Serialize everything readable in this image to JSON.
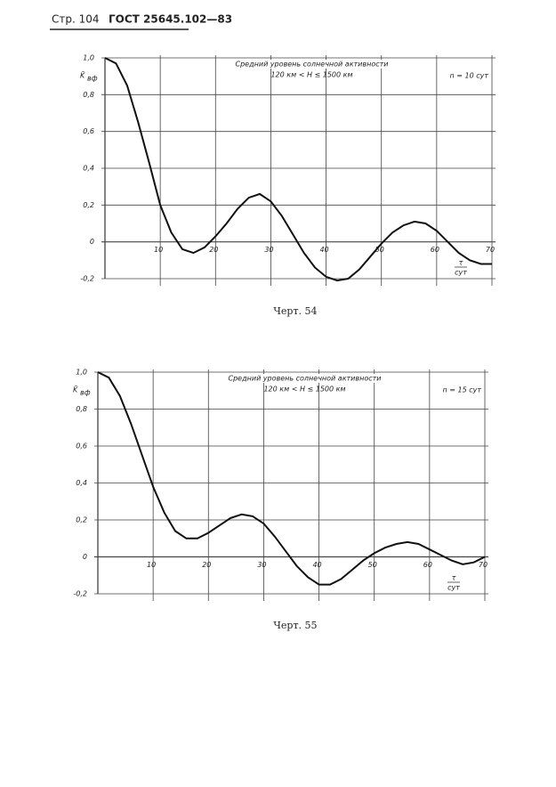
{
  "header": {
    "page": "Стр. 104",
    "standard": "ГОСТ 25645.102—83"
  },
  "chart_data": [
    {
      "type": "line",
      "caption": "Черт. 54",
      "title": "Средний уровень солнечной активности",
      "subtitle": "120 км < H ≤ 1500 км",
      "annotation": "n = 10 сут",
      "ylabel": {
        "symbol": "K̄",
        "subscript": "вф"
      },
      "xlabel": {
        "numerator": "τ",
        "denominator": "сут"
      },
      "color": "#111",
      "x": [
        0,
        2,
        4,
        6,
        8,
        10,
        12,
        14,
        16,
        18,
        20,
        22,
        24,
        26,
        28,
        30,
        32,
        34,
        36,
        38,
        40,
        42,
        44,
        46,
        48,
        50,
        52,
        54,
        56,
        58,
        60,
        62,
        64,
        66,
        68,
        70
      ],
      "values": [
        1.0,
        0.97,
        0.85,
        0.65,
        0.43,
        0.2,
        0.05,
        -0.04,
        -0.06,
        -0.03,
        0.03,
        0.1,
        0.18,
        0.24,
        0.26,
        0.22,
        0.14,
        0.04,
        -0.06,
        -0.14,
        -0.19,
        -0.21,
        -0.2,
        -0.15,
        -0.08,
        -0.01,
        0.05,
        0.09,
        0.11,
        0.1,
        0.06,
        0.0,
        -0.06,
        -0.1,
        -0.12,
        -0.12
      ],
      "xlim": [
        0,
        70
      ],
      "ylim": [
        -0.2,
        1.0
      ],
      "xticks": [
        10,
        20,
        30,
        40,
        50,
        60,
        70
      ],
      "yticks": [
        {
          "value": -0.2,
          "label": "-0,2"
        },
        0,
        {
          "value": 0.2,
          "label": "0,2"
        },
        {
          "value": 0.4,
          "label": "0,4"
        },
        {
          "value": 0.6,
          "label": "0,6"
        },
        {
          "value": 0.8,
          "label": "0,8"
        },
        {
          "value": 1.0,
          "label": "1,0"
        }
      ],
      "grid": true
    },
    {
      "type": "line",
      "caption": "Черт. 55",
      "title": "Средний уровень солнечной активности",
      "subtitle": "120 км < H ≤ 1500 км",
      "annotation": "n = 15 сут",
      "ylabel": {
        "symbol": "K̄",
        "subscript": "вф"
      },
      "xlabel": {
        "numerator": "τ",
        "denominator": "сут"
      },
      "color": "#111",
      "x": [
        0,
        2,
        4,
        6,
        8,
        10,
        12,
        14,
        16,
        18,
        20,
        22,
        24,
        26,
        28,
        30,
        32,
        34,
        36,
        38,
        40,
        42,
        44,
        46,
        48,
        50,
        52,
        54,
        56,
        58,
        60,
        62,
        64,
        66,
        68,
        70
      ],
      "values": [
        1.0,
        0.97,
        0.87,
        0.72,
        0.55,
        0.38,
        0.24,
        0.14,
        0.1,
        0.1,
        0.13,
        0.17,
        0.21,
        0.23,
        0.22,
        0.18,
        0.11,
        0.03,
        -0.05,
        -0.11,
        -0.15,
        -0.15,
        -0.12,
        -0.07,
        -0.02,
        0.02,
        0.05,
        0.07,
        0.08,
        0.07,
        0.04,
        0.01,
        -0.02,
        -0.04,
        -0.03,
        0.0
      ],
      "xlim": [
        0,
        70
      ],
      "ylim": [
        -0.2,
        1.0
      ],
      "xticks": [
        10,
        20,
        30,
        40,
        50,
        60,
        70
      ],
      "yticks": [
        {
          "value": -0.2,
          "label": "-0,2"
        },
        0,
        {
          "value": 0.2,
          "label": "0,2"
        },
        {
          "value": 0.4,
          "label": "0,4"
        },
        {
          "value": 0.6,
          "label": "0,6"
        },
        {
          "value": 0.8,
          "label": "0,8"
        },
        {
          "value": 1.0,
          "label": "1,0"
        }
      ],
      "grid": true
    }
  ]
}
